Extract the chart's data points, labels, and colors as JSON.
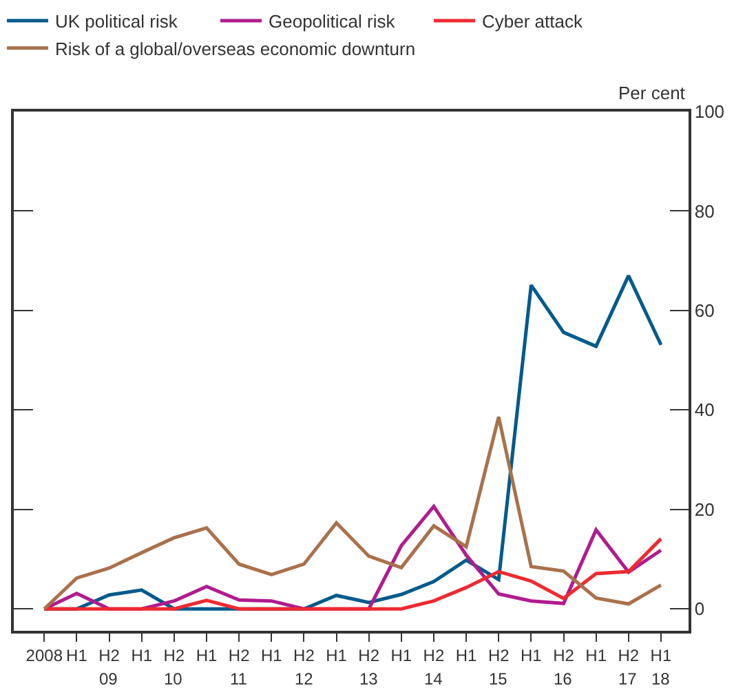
{
  "chart_data": {
    "type": "line",
    "ylabel": "Per cent",
    "categories": [
      "2008",
      "H1",
      "H2",
      "H1",
      "H2",
      "H1",
      "H2",
      "H1",
      "H2",
      "H1",
      "H2",
      "H1",
      "H2",
      "H1",
      "H2",
      "H1",
      "H2",
      "H1",
      "H2",
      "H1"
    ],
    "series": [
      {
        "name": "UK political risk",
        "color": "#005a8c",
        "values": [
          0,
          0,
          2.8,
          3.8,
          0,
          0,
          0,
          0,
          0,
          2.7,
          1.3,
          2.9,
          5.5,
          9.8,
          5.9,
          65.1,
          55.6,
          52.8,
          67.0,
          53.1
        ]
      },
      {
        "name": "Geopolitical risk",
        "color": "#b01c8e",
        "values": [
          0,
          3.1,
          0,
          0,
          1.6,
          4.5,
          1.8,
          1.6,
          0,
          0,
          0,
          12.7,
          20.6,
          10.8,
          3.0,
          1.6,
          1.1,
          15.9,
          7.4,
          11.8
        ]
      },
      {
        "name": "Cyber attack",
        "color": "#ee2a31",
        "values": [
          0,
          0,
          0,
          0,
          0,
          1.7,
          0,
          0,
          0,
          0,
          0,
          0,
          1.6,
          4.3,
          7.5,
          5.6,
          2.1,
          7.1,
          7.5,
          14.1
        ]
      },
      {
        "name": "Risk of a global/overseas economic downturn",
        "color": "#a9714b",
        "values": [
          0,
          6.2,
          8.2,
          11.3,
          14.3,
          16.3,
          9.0,
          6.9,
          9.0,
          17.3,
          10.6,
          8.3,
          16.7,
          12.5,
          38.6,
          8.5,
          7.6,
          2.2,
          1.0,
          4.8
        ]
      }
    ],
    "annotations": [
      "09",
      "10",
      "11",
      "12",
      "13",
      "14",
      "15",
      "16",
      "17",
      "18"
    ],
    "ylim": [
      -4.4,
      100
    ],
    "yticks": [
      0,
      20,
      40,
      60,
      80,
      100
    ],
    "grid": false,
    "legend": "top left",
    "marker": "none",
    "line_style": "solid"
  }
}
